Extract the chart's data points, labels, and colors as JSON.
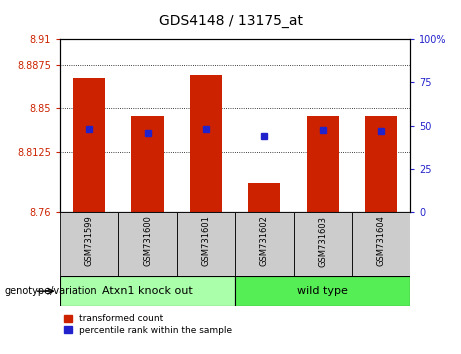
{
  "title": "GDS4148 / 13175_at",
  "samples": [
    "GSM731599",
    "GSM731600",
    "GSM731601",
    "GSM731602",
    "GSM731603",
    "GSM731604"
  ],
  "bar_bottoms": [
    8.76,
    8.76,
    8.76,
    8.76,
    8.76,
    8.76
  ],
  "bar_tops": [
    8.876,
    8.843,
    8.879,
    8.785,
    8.843,
    8.843
  ],
  "blue_values": [
    8.832,
    8.829,
    8.832,
    8.826,
    8.831,
    8.83
  ],
  "ylim_left": [
    8.76,
    8.91
  ],
  "ylim_right": [
    0,
    100
  ],
  "yticks_left": [
    8.76,
    8.8125,
    8.85,
    8.8875,
    8.91
  ],
  "yticks_right": [
    0,
    25,
    50,
    75,
    100
  ],
  "ytick_labels_left": [
    "8.76",
    "8.8125",
    "8.85",
    "8.8875",
    "8.91"
  ],
  "ytick_labels_right": [
    "0",
    "25",
    "50",
    "75",
    "100%"
  ],
  "bar_color": "#cc2200",
  "blue_color": "#2222cc",
  "group1_label": "Atxn1 knock out",
  "group2_label": "wild type",
  "group1_color": "#aaffaa",
  "group2_color": "#55ee55",
  "legend_red": "transformed count",
  "legend_blue": "percentile rank within the sample",
  "genotype_label": "genotype/variation",
  "bar_width": 0.55,
  "bg_color": "#ffffff",
  "sample_bg": "#cccccc"
}
